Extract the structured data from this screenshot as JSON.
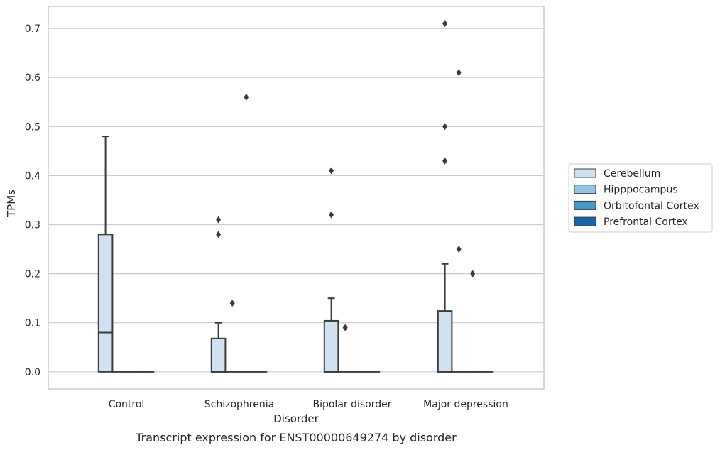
{
  "caption": "Transcript expression for ENST00000649274 by disorder",
  "colors": {
    "grid": "#cccccc",
    "frame": "#cccccc",
    "box_edge": "#3b3b3b",
    "outlier": "#3b3b3b"
  },
  "chart_data": {
    "type": "box",
    "xlabel": "Disorder",
    "ylabel": "TPMs",
    "ylim": [
      -0.035,
      0.745
    ],
    "yticks": [
      0.0,
      0.1,
      0.2,
      0.3,
      0.4,
      0.5,
      0.6,
      0.7
    ],
    "ytick_labels": [
      "0.0",
      "0.1",
      "0.2",
      "0.3",
      "0.4",
      "0.5",
      "0.6",
      "0.7"
    ],
    "grid": true,
    "legend_position": "right",
    "categories": [
      "Control",
      "Schizophrenia",
      "Bipolar disorder",
      "Major depression"
    ],
    "series": [
      {
        "name": "Cerebellum",
        "color": "#d0e1f2",
        "boxes": [
          {
            "q1": 0.0,
            "median": 0.08,
            "q3": 0.28,
            "whisker_low": 0.0,
            "whisker_high": 0.48,
            "outliers": []
          },
          {
            "q1": 0.0,
            "median": 0.0,
            "q3": 0.068,
            "whisker_low": 0.0,
            "whisker_high": 0.1,
            "outliers": [
              0.31,
              0.28
            ]
          },
          {
            "q1": 0.0,
            "median": 0.0,
            "q3": 0.104,
            "whisker_low": 0.0,
            "whisker_high": 0.15,
            "outliers": [
              0.41,
              0.32
            ]
          },
          {
            "q1": 0.0,
            "median": 0.0,
            "q3": 0.124,
            "whisker_low": 0.0,
            "whisker_high": 0.22,
            "outliers": [
              0.71,
              0.5,
              0.43
            ]
          }
        ]
      },
      {
        "name": "Hipppocampus",
        "color": "#94c4df",
        "boxes": [
          {
            "q1": 0.0,
            "median": 0.0,
            "q3": 0.0,
            "whisker_low": 0.0,
            "whisker_high": 0.0,
            "outliers": []
          },
          {
            "q1": 0.0,
            "median": 0.0,
            "q3": 0.0,
            "whisker_low": 0.0,
            "whisker_high": 0.0,
            "outliers": [
              0.14
            ]
          },
          {
            "q1": 0.0,
            "median": 0.0,
            "q3": 0.0,
            "whisker_low": 0.0,
            "whisker_high": 0.0,
            "outliers": [
              0.09
            ]
          },
          {
            "q1": 0.0,
            "median": 0.0,
            "q3": 0.0,
            "whisker_low": 0.0,
            "whisker_high": 0.0,
            "outliers": [
              0.61,
              0.25
            ]
          }
        ]
      },
      {
        "name": "Orbitofontal Cortex",
        "color": "#4a98c9",
        "boxes": [
          {
            "q1": 0.0,
            "median": 0.0,
            "q3": 0.0,
            "whisker_low": 0.0,
            "whisker_high": 0.0,
            "outliers": []
          },
          {
            "q1": 0.0,
            "median": 0.0,
            "q3": 0.0,
            "whisker_low": 0.0,
            "whisker_high": 0.0,
            "outliers": [
              0.56
            ]
          },
          {
            "q1": 0.0,
            "median": 0.0,
            "q3": 0.0,
            "whisker_low": 0.0,
            "whisker_high": 0.0,
            "outliers": []
          },
          {
            "q1": 0.0,
            "median": 0.0,
            "q3": 0.0,
            "whisker_low": 0.0,
            "whisker_high": 0.0,
            "outliers": [
              0.2
            ]
          }
        ]
      },
      {
        "name": "Prefrontal Cortex",
        "color": "#1764ab",
        "boxes": [
          {
            "q1": 0.0,
            "median": 0.0,
            "q3": 0.0,
            "whisker_low": 0.0,
            "whisker_high": 0.0,
            "outliers": []
          },
          {
            "q1": 0.0,
            "median": 0.0,
            "q3": 0.0,
            "whisker_low": 0.0,
            "whisker_high": 0.0,
            "outliers": []
          },
          {
            "q1": 0.0,
            "median": 0.0,
            "q3": 0.0,
            "whisker_low": 0.0,
            "whisker_high": 0.0,
            "outliers": []
          },
          {
            "q1": 0.0,
            "median": 0.0,
            "q3": 0.0,
            "whisker_low": 0.0,
            "whisker_high": 0.0,
            "outliers": []
          }
        ]
      }
    ]
  }
}
